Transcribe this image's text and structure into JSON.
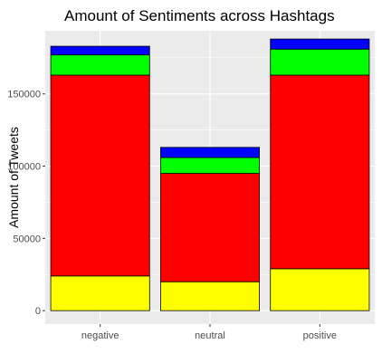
{
  "chart_data": {
    "type": "bar",
    "stacked": true,
    "title": "Amount of Sentiments across Hashtags",
    "xlabel": "",
    "ylabel": "Amount of Tweets",
    "categories": [
      "negative",
      "neutral",
      "positive"
    ],
    "ylim": [
      -9300,
      193700
    ],
    "yticks": [
      0,
      50000,
      100000,
      150000
    ],
    "ytick_labels": [
      "0",
      "50000",
      "100000",
      "150000"
    ],
    "series": [
      {
        "color": "#ffff00",
        "values": [
          24000,
          20000,
          29000
        ]
      },
      {
        "color": "#ff0000",
        "values": [
          139000,
          75000,
          134000
        ]
      },
      {
        "color": "#00ff00",
        "values": [
          14000,
          11000,
          18000
        ]
      },
      {
        "color": "#0000ff",
        "values": [
          6000,
          7000,
          7000
        ]
      }
    ],
    "panel_background": "#ebebeb",
    "grid": true,
    "bar_outline": "#000000"
  }
}
